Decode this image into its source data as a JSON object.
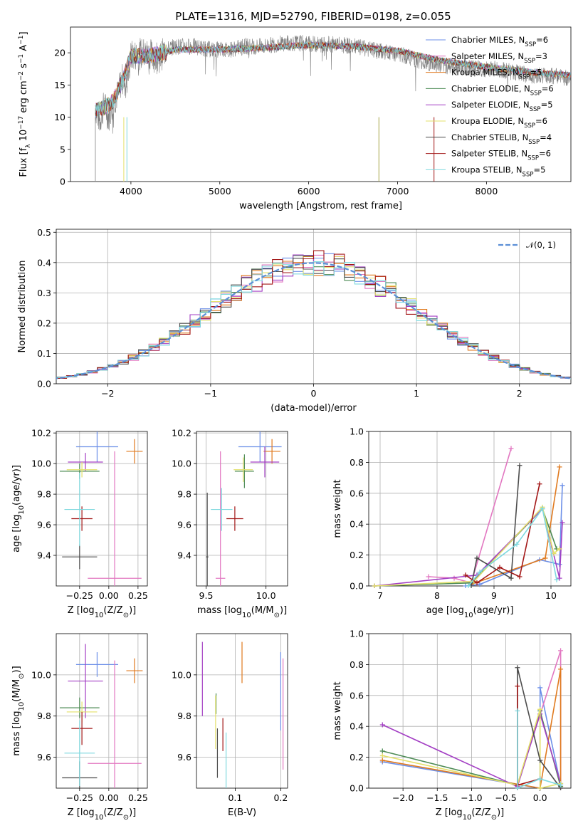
{
  "figure": {
    "title": "PLATE=1316, MJD=52790, FIBERID=0198, z=0.055"
  },
  "colors": {
    "Chabrier MILES": "#6c8fe8",
    "Salpeter MILES": "#e277c1",
    "Kroupa MILES": "#e07a1f",
    "Chabrier ELODIE": "#4d8b55",
    "Salpeter ELODIE": "#a33fc4",
    "Kroupa ELODIE": "#e3e06a",
    "Chabrier STELIB": "#4d4d4d",
    "Salpeter STELIB": "#a31818",
    "Kroupa STELIB": "#7fd9df",
    "gaussian": "#5b8fd6"
  },
  "legend_spectrum": [
    {
      "name": "Chabrier MILES",
      "label": "Chabrier MILES, N",
      "sub": "SSP",
      "eq": "=6"
    },
    {
      "name": "Salpeter MILES",
      "label": "Salpeter MILES, N",
      "sub": "SSP",
      "eq": "=3"
    },
    {
      "name": "Kroupa MILES",
      "label": "Kroupa MILES, N",
      "sub": "SSP",
      "eq": "=5"
    },
    {
      "name": "Chabrier ELODIE",
      "label": "Chabrier ELODIE, N",
      "sub": "SSP",
      "eq": "=6"
    },
    {
      "name": "Salpeter ELODIE",
      "label": "Salpeter ELODIE, N",
      "sub": "SSP",
      "eq": "=5"
    },
    {
      "name": "Kroupa ELODIE",
      "label": "Kroupa ELODIE, N",
      "sub": "SSP",
      "eq": "=6"
    },
    {
      "name": "Chabrier STELIB",
      "label": "Chabrier STELIB, N",
      "sub": "SSP",
      "eq": "=4"
    },
    {
      "name": "Salpeter STELIB",
      "label": "Salpeter STELIB, N",
      "sub": "SSP",
      "eq": "=6"
    },
    {
      "name": "Kroupa STELIB",
      "label": "Kroupa STELIB, N",
      "sub": "SSP",
      "eq": "=5"
    }
  ],
  "legend_hist": {
    "label": "𝒩(0, 1)"
  },
  "chart_data": [
    {
      "id": "spectrum",
      "type": "line",
      "title": "PLATE=1316, MJD=52790, FIBERID=0198, z=0.055",
      "xlabel": "wavelength [Angstrom, rest frame]",
      "ylabel": "Flux [f_λ 10^-17 erg cm^-2 s^-1 A^-1]",
      "xlim": [
        3320,
        8950
      ],
      "ylim": [
        0,
        24
      ],
      "xticks": [
        4000,
        5000,
        6000,
        7000,
        8000
      ],
      "yticks": [
        0,
        5,
        10,
        15,
        20
      ],
      "data_x": [
        3600,
        3650,
        3700,
        3750,
        3800,
        3850,
        3900,
        3950,
        4000,
        4100,
        4200,
        4300,
        4400,
        4500,
        4700,
        4900,
        5100,
        5300,
        5500,
        5700,
        5900,
        6100,
        6300,
        6500,
        6700,
        6900,
        7100,
        7300,
        7500,
        7700,
        7900,
        8100,
        8300,
        8500,
        8700,
        8950
      ],
      "data_y": [
        11.5,
        9.5,
        12,
        10,
        12.5,
        13.5,
        16,
        15,
        19.5,
        19.8,
        20,
        19,
        20.5,
        21,
        21,
        20.5,
        20.5,
        21,
        21,
        21.5,
        21.5,
        21.3,
        21.3,
        21,
        20.5,
        20,
        19.5,
        18.5,
        18,
        17.8,
        17.5,
        17.5,
        17,
        16.5,
        16.5,
        16
      ],
      "model_x": [
        3600,
        3700,
        3800,
        3900,
        4000,
        4200,
        4500,
        5000,
        5500,
        6000,
        6500,
        7000,
        7500,
        8000,
        8500,
        8950
      ],
      "model_y": [
        11,
        11.5,
        12.5,
        15.5,
        19.5,
        19.5,
        20.5,
        20.5,
        20.8,
        21.2,
        21,
        20.3,
        18.8,
        17.8,
        17,
        16.5
      ],
      "series": [
        "Chabrier MILES",
        "Salpeter MILES",
        "Kroupa MILES",
        "Chabrier ELODIE",
        "Salpeter ELODIE",
        "Kroupa ELODIE",
        "Chabrier STELIB",
        "Salpeter STELIB",
        "Kroupa STELIB"
      ]
    },
    {
      "id": "residual_hist",
      "type": "line",
      "xlabel": "(data-model)/error",
      "ylabel": "Normed distribution",
      "xlim": [
        -2.5,
        2.5
      ],
      "ylim": [
        0,
        0.51
      ],
      "xticks": [
        -2,
        -1,
        0,
        1,
        2
      ],
      "xtick_labels": [
        "−2",
        "−1",
        "0",
        "1",
        "2"
      ],
      "yticks": [
        0.0,
        0.1,
        0.2,
        0.3,
        0.4,
        0.5
      ],
      "ytick_labels": [
        "0.0",
        "0.1",
        "0.2",
        "0.3",
        "0.4",
        "0.5"
      ],
      "bin_width": 0.1,
      "reference": {
        "name": "𝒩(0, 1)",
        "mean": 0,
        "sigma": 1
      }
    },
    {
      "id": "age_vs_Z",
      "type": "scatter",
      "xlabel": "Z [log10(Z/Z⊙)]",
      "ylabel": "age [log10(age/yr)]",
      "xlim": [
        -0.45,
        0.33
      ],
      "ylim": [
        9.2,
        10.21
      ],
      "xticks": [
        -0.25,
        0.0,
        0.25
      ],
      "xtick_labels": [
        "−0.25",
        "0.00",
        "0.25"
      ],
      "yticks": [
        9.4,
        9.6,
        9.8,
        10.0,
        10.2
      ],
      "ytick_labels": [
        "9.4",
        "9.6",
        "9.8",
        "10.0",
        "10.2"
      ],
      "points": [
        {
          "series": "Chabrier MILES",
          "x": -0.1,
          "y": 10.11,
          "xerr": 0.18,
          "yerr": 0.1
        },
        {
          "series": "Salpeter MILES",
          "x": 0.05,
          "y": 9.25,
          "xerr": 0.23,
          "yerr": 0.83
        },
        {
          "series": "Kroupa MILES",
          "x": 0.22,
          "y": 10.08,
          "xerr": 0.07,
          "yerr": 0.08
        },
        {
          "series": "Chabrier ELODIE",
          "x": -0.25,
          "y": 9.95,
          "xerr": 0.17,
          "yerr": 0.05
        },
        {
          "series": "Salpeter ELODIE",
          "x": -0.2,
          "y": 10.01,
          "xerr": 0.15,
          "yerr": 0.06
        },
        {
          "series": "Kroupa ELODIE",
          "x": -0.23,
          "y": 9.96,
          "xerr": 0.13,
          "yerr": 0.05
        },
        {
          "series": "Chabrier STELIB",
          "x": -0.25,
          "y": 9.39,
          "xerr": 0.15,
          "yerr": 0.08
        },
        {
          "series": "Salpeter STELIB",
          "x": -0.23,
          "y": 9.64,
          "xerr": 0.09,
          "yerr": 0.08
        },
        {
          "series": "Kroupa STELIB",
          "x": -0.25,
          "y": 9.7,
          "xerr": 0.13,
          "yerr": 0.24
        }
      ]
    },
    {
      "id": "age_vs_mass",
      "type": "scatter",
      "xlabel": "mass [log10(M/M⊙)]",
      "ylabel": "",
      "xlim": [
        9.42,
        10.18
      ],
      "ylim": [
        9.2,
        10.21
      ],
      "xticks": [
        9.5,
        10.0
      ],
      "xtick_labels": [
        "9.5",
        "10.0"
      ],
      "yticks": [
        9.4,
        9.6,
        9.8,
        10.0,
        10.2
      ],
      "ytick_labels": [
        "9.4",
        "9.6",
        "9.8",
        "10.0",
        "10.2"
      ],
      "points": [
        {
          "series": "Chabrier MILES",
          "x": 9.95,
          "y": 10.11,
          "xerr": 0.18,
          "yerr": 0.1
        },
        {
          "series": "Salpeter MILES",
          "x": 9.62,
          "y": 9.25,
          "xerr": 0.04,
          "yerr": 0.83
        },
        {
          "series": "Kroupa MILES",
          "x": 10.05,
          "y": 10.08,
          "xerr": 0.07,
          "yerr": 0.08
        },
        {
          "series": "Chabrier ELODIE",
          "x": 9.82,
          "y": 9.95,
          "xerr": 0.08,
          "yerr": 0.11
        },
        {
          "series": "Salpeter ELODIE",
          "x": 9.99,
          "y": 10.01,
          "xerr": 0.12,
          "yerr": 0.1
        },
        {
          "series": "Kroupa ELODIE",
          "x": 9.81,
          "y": 9.96,
          "xerr": 0.08,
          "yerr": 0.08
        },
        {
          "series": "Chabrier STELIB",
          "x": 9.51,
          "y": 9.39,
          "xerr": 0.01,
          "yerr": 0.42
        },
        {
          "series": "Salpeter STELIB",
          "x": 9.74,
          "y": 9.64,
          "xerr": 0.07,
          "yerr": 0.08
        },
        {
          "series": "Kroupa STELIB",
          "x": 9.63,
          "y": 9.7,
          "xerr": 0.09,
          "yerr": 0.14
        }
      ]
    },
    {
      "id": "weight_vs_age",
      "type": "line",
      "xlabel": "age [log10(age/yr)]",
      "ylabel": "mass weight",
      "xlim": [
        6.8,
        10.35
      ],
      "ylim": [
        0,
        1.0
      ],
      "xticks": [
        7,
        8,
        9,
        10
      ],
      "xtick_labels": [
        "7",
        "8",
        "9",
        "10"
      ],
      "yticks": [
        0.0,
        0.2,
        0.4,
        0.6,
        0.8,
        1.0
      ],
      "ytick_labels": [
        "0.0",
        "0.2",
        "0.4",
        "0.6",
        "0.8",
        "1.0"
      ],
      "series": [
        {
          "name": "Chabrier MILES",
          "x": [
            8.5,
            8.75,
            9.8,
            10.15,
            10.2
          ],
          "y": [
            0.0,
            0.01,
            0.17,
            0.14,
            0.65
          ]
        },
        {
          "name": "Salpeter MILES",
          "x": [
            7.85,
            8.3,
            8.6,
            9.3
          ],
          "y": [
            0.06,
            0.05,
            0.02,
            0.89
          ]
        },
        {
          "name": "Kroupa MILES",
          "x": [
            8.6,
            9.9,
            10.15
          ],
          "y": [
            0.01,
            0.18,
            0.77
          ]
        },
        {
          "name": "Chabrier ELODIE",
          "x": [
            6.9,
            8.6,
            9.85,
            10.1
          ],
          "y": [
            0.0,
            0.02,
            0.5,
            0.24
          ]
        },
        {
          "name": "Salpeter ELODIE",
          "x": [
            6.9,
            8.7,
            9.85,
            10.15,
            10.2
          ],
          "y": [
            0.0,
            0.07,
            0.5,
            0.05,
            0.41
          ]
        },
        {
          "name": "Kroupa ELODIE",
          "x": [
            6.9,
            8.65,
            9.85,
            10.05,
            10.15
          ],
          "y": [
            0.0,
            0.03,
            0.51,
            0.21,
            0.24
          ]
        },
        {
          "name": "Chabrier STELIB",
          "x": [
            8.6,
            8.7,
            9.3,
            9.45
          ],
          "y": [
            0.0,
            0.18,
            0.05,
            0.78
          ]
        },
        {
          "name": "Salpeter STELIB",
          "x": [
            8.5,
            8.7,
            9.1,
            9.45,
            9.8
          ],
          "y": [
            0.07,
            0.02,
            0.12,
            0.06,
            0.66
          ]
        },
        {
          "name": "Kroupa STELIB",
          "x": [
            8.55,
            8.75,
            9.4,
            9.85,
            10.1
          ],
          "y": [
            0.0,
            0.09,
            0.27,
            0.5,
            0.04
          ]
        }
      ]
    },
    {
      "id": "mass_vs_Z",
      "type": "scatter",
      "xlabel": "Z [log10(Z/Z⊙)]",
      "ylabel": "mass [log10(M/M⊙)]",
      "xlim": [
        -0.45,
        0.33
      ],
      "ylim": [
        9.45,
        10.2
      ],
      "xticks": [
        -0.25,
        0.0,
        0.25
      ],
      "xtick_labels": [
        "−0.25",
        "0.00",
        "0.25"
      ],
      "yticks": [
        9.6,
        9.8,
        10.0
      ],
      "ytick_labels": [
        "9.6",
        "9.8",
        "10.0"
      ],
      "points": [
        {
          "series": "Chabrier MILES",
          "x": -0.1,
          "y": 10.05,
          "xerr": 0.18,
          "yerr": 0.06
        },
        {
          "series": "Salpeter MILES",
          "x": 0.05,
          "y": 9.57,
          "xerr": 0.23,
          "yerr": 0.5
        },
        {
          "series": "Kroupa MILES",
          "x": 0.22,
          "y": 10.02,
          "xerr": 0.07,
          "yerr": 0.06
        },
        {
          "series": "Chabrier ELODIE",
          "x": -0.25,
          "y": 9.84,
          "xerr": 0.17,
          "yerr": 0.05
        },
        {
          "series": "Salpeter ELODIE",
          "x": -0.2,
          "y": 9.97,
          "xerr": 0.15,
          "yerr": 0.18
        },
        {
          "series": "Kroupa ELODIE",
          "x": -0.23,
          "y": 9.82,
          "xerr": 0.13,
          "yerr": 0.05
        },
        {
          "series": "Chabrier STELIB",
          "x": -0.25,
          "y": 9.5,
          "xerr": 0.15,
          "yerr": 0.08
        },
        {
          "series": "Salpeter STELIB",
          "x": -0.23,
          "y": 9.74,
          "xerr": 0.09,
          "yerr": 0.08
        },
        {
          "series": "Kroupa STELIB",
          "x": -0.25,
          "y": 9.62,
          "xerr": 0.13,
          "yerr": 0.16
        }
      ]
    },
    {
      "id": "mass_vs_ebv",
      "type": "scatter",
      "xlabel": "E(B-V)",
      "ylabel": "",
      "xlim": [
        0.015,
        0.215
      ],
      "ylim": [
        9.45,
        10.2
      ],
      "xticks": [
        0.1,
        0.2
      ],
      "xtick_labels": [
        "0.1",
        "0.2"
      ],
      "yticks": [
        9.6,
        9.8,
        10.0
      ],
      "ytick_labels": [
        "9.6",
        "9.8",
        "10.0"
      ],
      "points": [
        {
          "series": "Chabrier MILES",
          "x": 0.2,
          "y": 9.92,
          "xerr": 0,
          "yerr": 0.19
        },
        {
          "series": "Salpeter MILES",
          "x": 0.205,
          "y": 9.81,
          "xerr": 0,
          "yerr": 0.27
        },
        {
          "series": "Kroupa MILES",
          "x": 0.115,
          "y": 10.06,
          "xerr": 0,
          "yerr": 0.1
        },
        {
          "series": "Chabrier ELODIE",
          "x": 0.058,
          "y": 9.86,
          "xerr": 0,
          "yerr": 0.05
        },
        {
          "series": "Salpeter ELODIE",
          "x": 0.028,
          "y": 9.98,
          "xerr": 0,
          "yerr": 0.18
        },
        {
          "series": "Kroupa ELODIE",
          "x": 0.057,
          "y": 9.77,
          "xerr": 0,
          "yerr": 0.13
        },
        {
          "series": "Chabrier STELIB",
          "x": 0.061,
          "y": 9.62,
          "xerr": 0,
          "yerr": 0.12
        },
        {
          "series": "Salpeter STELIB",
          "x": 0.073,
          "y": 9.71,
          "xerr": 0,
          "yerr": 0.08
        },
        {
          "series": "Kroupa STELIB",
          "x": 0.08,
          "y": 9.58,
          "xerr": 0,
          "yerr": 0.14
        }
      ]
    },
    {
      "id": "weight_vs_Z",
      "type": "line",
      "xlabel": "Z [log10(Z/Z⊙)]",
      "ylabel": "mass weight",
      "xlim": [
        -2.5,
        0.45
      ],
      "ylim": [
        0,
        1.0
      ],
      "xticks": [
        -2.0,
        -1.5,
        -1.0,
        -0.5,
        0.0
      ],
      "xtick_labels": [
        "−2.0",
        "−1.5",
        "−1.0",
        "−0.5",
        "0.0"
      ],
      "yticks": [
        0.0,
        0.2,
        0.4,
        0.6,
        0.8,
        1.0
      ],
      "ytick_labels": [
        "0.0",
        "0.2",
        "0.4",
        "0.6",
        "0.8",
        "1.0"
      ],
      "series": [
        {
          "name": "Chabrier MILES",
          "x": [
            -2.3,
            0.0,
            0.0,
            0.3
          ],
          "y": [
            0.17,
            0.0,
            0.65,
            0.02
          ]
        },
        {
          "name": "Salpeter MILES",
          "x": [
            -0.33,
            0.3,
            0.3
          ],
          "y": [
            0.02,
            0.89,
            0.0
          ]
        },
        {
          "name": "Kroupa MILES",
          "x": [
            -2.3,
            0.0,
            0.3,
            0.3
          ],
          "y": [
            0.18,
            0.0,
            0.77,
            0.01
          ]
        },
        {
          "name": "Chabrier ELODIE",
          "x": [
            -2.3,
            -0.33,
            0.0,
            0.3
          ],
          "y": [
            0.24,
            0.02,
            0.5,
            0.01
          ]
        },
        {
          "name": "Salpeter ELODIE",
          "x": [
            -2.3,
            -0.33,
            0.0,
            0.3
          ],
          "y": [
            0.41,
            0.01,
            0.48,
            0.03
          ]
        },
        {
          "name": "Kroupa ELODIE",
          "x": [
            -2.3,
            -0.33,
            0.0,
            0.0,
            0.3
          ],
          "y": [
            0.21,
            0.02,
            0.51,
            0.0,
            0.03
          ]
        },
        {
          "name": "Chabrier STELIB",
          "x": [
            -0.33,
            -0.33,
            0.0,
            0.3
          ],
          "y": [
            0.0,
            0.78,
            0.18,
            0.0
          ]
        },
        {
          "name": "Salpeter STELIB",
          "x": [
            -0.33,
            -0.33,
            -0.33,
            0.0
          ],
          "y": [
            0.66,
            0.0,
            0.02,
            0.06
          ]
        },
        {
          "name": "Kroupa STELIB",
          "x": [
            -0.33,
            -0.33,
            0.0,
            0.3
          ],
          "y": [
            0.5,
            0.0,
            0.06,
            0.02
          ]
        }
      ]
    }
  ]
}
